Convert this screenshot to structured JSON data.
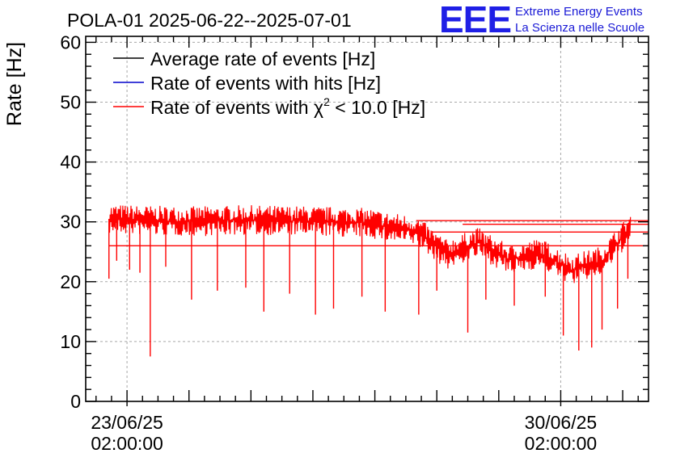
{
  "chart_data": {
    "type": "line",
    "title": "POLA-01 2025-06-22--2025-07-01",
    "ylabel": "Rate [Hz]",
    "xlabel": "",
    "ylim": [
      0,
      61
    ],
    "yticks": [
      "0",
      "10",
      "20",
      "30",
      "40",
      "50",
      "60"
    ],
    "xlim": [
      "2025-06-22 10:00",
      "2025-07-01 12:00"
    ],
    "xticks": [
      {
        "date": "23/06/25",
        "time": "02:00:00",
        "at": "2025-06-23 02:00"
      },
      {
        "date": "30/06/25",
        "time": "02:00:00",
        "at": "2025-06-30 02:00"
      }
    ],
    "grid": true,
    "legend_position": "top-left",
    "legend": [
      {
        "name": "Average rate of events [Hz]",
        "color": "#000000"
      },
      {
        "name": "Rate of events with hits [Hz]",
        "color": "#0000cc"
      },
      {
        "name_prefix": "Rate of events with ",
        "name_symbol": "χ",
        "name_sup": "2",
        "name_suffix": " < 10.0 [Hz]",
        "color": "#ff0000"
      }
    ],
    "series": [
      {
        "name": "Rate of events with χ2 < 10.0 [Hz]",
        "color": "#ff0000",
        "x": [
          "2025-06-22 19:00",
          "2025-06-23 12:00",
          "2025-06-24 06:00",
          "2025-06-25 00:00",
          "2025-06-25 18:00",
          "2025-06-26 12:00",
          "2025-06-27 00:00",
          "2025-06-27 06:00",
          "2025-06-27 18:00",
          "2025-06-28 06:00",
          "2025-06-28 18:00",
          "2025-06-29 06:00",
          "2025-06-29 18:00",
          "2025-06-30 06:00",
          "2025-06-30 18:00",
          "2025-07-01 00:00",
          "2025-07-01 05:00"
        ],
        "y": [
          30.5,
          30.2,
          30.1,
          30.3,
          30.2,
          30.0,
          29.8,
          29.2,
          28.5,
          24.5,
          26.6,
          23.6,
          24.8,
          22.0,
          23.5,
          26.5,
          29.0
        ],
        "noise_band": 2.5,
        "spikes": [
          {
            "x": "2025-06-22 19:00",
            "y": 20.5
          },
          {
            "x": "2025-06-22 22:00",
            "y": 23.5
          },
          {
            "x": "2025-06-23 03:00",
            "y": 22.0
          },
          {
            "x": "2025-06-23 07:00",
            "y": 21.5
          },
          {
            "x": "2025-06-23 11:00",
            "y": 7.5
          },
          {
            "x": "2025-06-23 17:00",
            "y": 22.5
          },
          {
            "x": "2025-06-24 03:00",
            "y": 17.0
          },
          {
            "x": "2025-06-24 13:00",
            "y": 18.5
          },
          {
            "x": "2025-06-25 00:00",
            "y": 19.0
          },
          {
            "x": "2025-06-25 07:00",
            "y": 15.0
          },
          {
            "x": "2025-06-25 17:00",
            "y": 18.0
          },
          {
            "x": "2025-06-26 03:00",
            "y": 14.5
          },
          {
            "x": "2025-06-26 10:00",
            "y": 15.5
          },
          {
            "x": "2025-06-26 21:00",
            "y": 17.5
          },
          {
            "x": "2025-06-27 06:00",
            "y": 15.0
          },
          {
            "x": "2025-06-27 19:00",
            "y": 14.5
          },
          {
            "x": "2025-06-28 02:00",
            "y": 18.5
          },
          {
            "x": "2025-06-28 14:00",
            "y": 11.5
          },
          {
            "x": "2025-06-28 21:00",
            "y": 17.0
          },
          {
            "x": "2025-06-29 08:00",
            "y": 16.0
          },
          {
            "x": "2025-06-29 20:00",
            "y": 17.5
          },
          {
            "x": "2025-06-30 03:00",
            "y": 11.0
          },
          {
            "x": "2025-06-30 09:00",
            "y": 8.5
          },
          {
            "x": "2025-06-30 14:00",
            "y": 9.0
          },
          {
            "x": "2025-06-30 18:00",
            "y": 12.0
          },
          {
            "x": "2025-07-01 00:00",
            "y": 15.5
          },
          {
            "x": "2025-07-01 04:00",
            "y": 20.5
          }
        ],
        "flat_segments": [
          {
            "x_from": "2025-06-27 18:00",
            "x_to": "2025-07-01 12:00",
            "y": 30.2
          },
          {
            "x_from": "2025-06-28 12:00",
            "x_to": "2025-07-01 12:00",
            "y": 29.6
          },
          {
            "x_from": "2025-06-28 00:00",
            "x_to": "2025-07-01 12:00",
            "y": 28.3
          },
          {
            "x_from": "2025-06-22 19:00",
            "x_to": "2025-07-01 12:00",
            "y": 26.0
          }
        ]
      }
    ]
  },
  "logo": {
    "mark": "EEE",
    "line1": "Extreme Energy Events",
    "line2": "La Scienza nelle Scuole"
  }
}
